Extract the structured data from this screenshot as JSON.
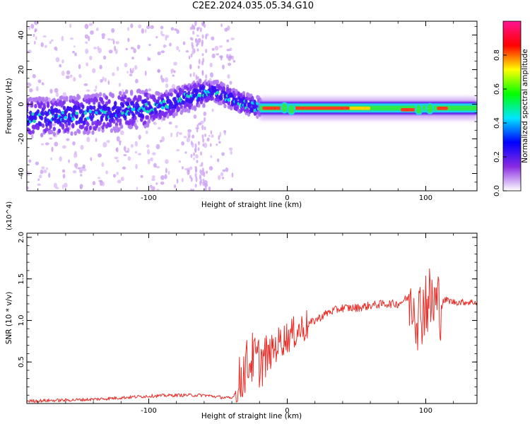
{
  "title": "C2E2.2024.035.05.34.G10",
  "chart_data": [
    {
      "type": "heatmap",
      "xlabel": "Height of straight line (km)",
      "ylabel": "Frequency (Hz)",
      "xlim": [
        -188,
        137
      ],
      "ylim": [
        -50,
        48
      ],
      "x_ticks": [
        -100,
        0,
        100
      ],
      "y_ticks": [
        40,
        20,
        0,
        -20,
        -40
      ],
      "colorbar": {
        "label": "Normalized spectral amplitude",
        "range": [
          0.0,
          1.0
        ],
        "ticks": [
          0.0,
          0.2,
          0.4,
          0.6,
          0.8
        ],
        "colors": [
          "#ffffff",
          "#8a2be2",
          "#0000ff",
          "#00e5ff",
          "#00ff00",
          "#ffff00",
          "#ff0000",
          "#ff1493"
        ]
      },
      "ridge_centerline": {
        "x": [
          -188,
          -170,
          -150,
          -130,
          -110,
          -90,
          -75,
          -60,
          -50,
          -40,
          -30,
          -20,
          0,
          50,
          90,
          100,
          110,
          137
        ],
        "y": [
          -8,
          -7,
          -6,
          -5,
          -3,
          -1,
          3,
          7,
          7,
          3,
          0,
          -2,
          -2,
          -2,
          -3,
          -2,
          -2,
          -3
        ]
      },
      "strong_segments": [
        [
          -20,
          -2
        ],
        [
          90,
          -3
        ]
      ]
    },
    {
      "type": "line",
      "xlabel": "Height of straight line (km)",
      "ylabel": "SNR (10 * v/v)",
      "y_multiplier": "(x10^4)",
      "xlim": [
        -188,
        137
      ],
      "ylim": [
        0,
        2.05
      ],
      "x_ticks": [
        -100,
        0,
        100
      ],
      "y_ticks": [
        0.5,
        1.0,
        1.5,
        2.0
      ],
      "series": [
        {
          "color": "#e8302a",
          "x": [
            -188,
            -160,
            -140,
            -120,
            -100,
            -80,
            -60,
            -40,
            -37,
            -30,
            -25,
            -20,
            -15,
            -10,
            -5,
            0,
            10,
            20,
            30,
            40,
            50,
            60,
            70,
            80,
            85,
            90,
            95,
            100,
            105,
            110,
            115,
            120,
            137
          ],
          "y": [
            0.03,
            0.04,
            0.05,
            0.07,
            0.09,
            0.1,
            0.1,
            0.06,
            0.15,
            0.45,
            0.55,
            0.5,
            0.55,
            0.65,
            0.75,
            0.8,
            0.9,
            1.0,
            1.1,
            1.15,
            1.15,
            1.18,
            1.2,
            1.2,
            1.25,
            1.3,
            1.05,
            1.25,
            1.2,
            1.2,
            1.25,
            1.22,
            1.22
          ]
        }
      ]
    }
  ]
}
